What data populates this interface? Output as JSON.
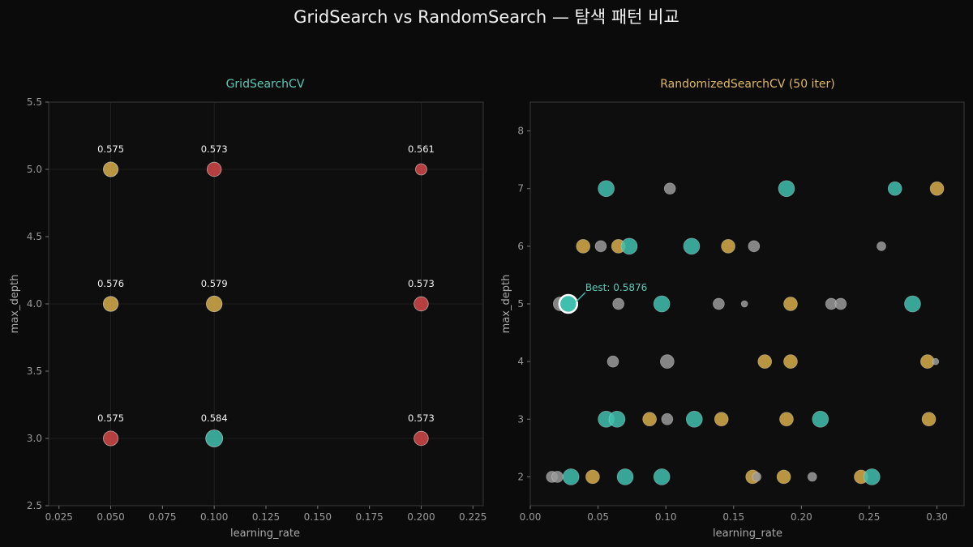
{
  "figure_title": "GridSearch vs RandomSearch — 탐색 패턴 비교",
  "colors": {
    "background": "#0b0b0b",
    "teal": "#3fbfae",
    "gold": "#d8ad4a",
    "red": "#d24848",
    "gray": "#9a9a9a",
    "grid_title": "#5fc9b8",
    "random_title": "#e0b865"
  },
  "chart_data": [
    {
      "type": "scatter",
      "title": "GridSearchCV",
      "xlabel": "learning_rate",
      "ylabel": "max_depth",
      "xlim": [
        0.02,
        0.23
      ],
      "ylim": [
        2.5,
        5.5
      ],
      "xticks": [
        "0.025",
        "0.050",
        "0.075",
        "0.100",
        "0.125",
        "0.150",
        "0.175",
        "0.200",
        "0.225"
      ],
      "yticks": [
        "2.5",
        "3.0",
        "3.5",
        "4.0",
        "4.5",
        "5.0",
        "5.5"
      ],
      "grid": true,
      "points": [
        {
          "x": 0.05,
          "y": 5,
          "score": 0.575,
          "label": "0.575",
          "color": "gold"
        },
        {
          "x": 0.1,
          "y": 5,
          "score": 0.573,
          "label": "0.573",
          "color": "red"
        },
        {
          "x": 0.2,
          "y": 5,
          "score": 0.561,
          "label": "0.561",
          "color": "red"
        },
        {
          "x": 0.05,
          "y": 4,
          "score": 0.576,
          "label": "0.576",
          "color": "gold"
        },
        {
          "x": 0.1,
          "y": 4,
          "score": 0.579,
          "label": "0.579",
          "color": "gold"
        },
        {
          "x": 0.2,
          "y": 4,
          "score": 0.573,
          "label": "0.573",
          "color": "red"
        },
        {
          "x": 0.05,
          "y": 3,
          "score": 0.575,
          "label": "0.575",
          "color": "red"
        },
        {
          "x": 0.1,
          "y": 3,
          "score": 0.584,
          "label": "0.584",
          "color": "teal"
        },
        {
          "x": 0.2,
          "y": 3,
          "score": 0.573,
          "label": "0.573",
          "color": "red"
        }
      ]
    },
    {
      "type": "scatter",
      "title": "RandomizedSearchCV (50 iter)",
      "xlabel": "learning_rate",
      "ylabel": "max_depth",
      "xlim": [
        0.0,
        0.32
      ],
      "ylim": [
        1.5,
        8.5
      ],
      "xticks": [
        "0.00",
        "0.05",
        "0.10",
        "0.15",
        "0.20",
        "0.25",
        "0.30"
      ],
      "yticks": [
        "2",
        "3",
        "4",
        "5",
        "6",
        "7",
        "8"
      ],
      "grid": false,
      "annotation": {
        "text": "Best: 0.5876",
        "x": 0.028,
        "y": 5
      },
      "points": [
        {
          "x": 0.056,
          "y": 7,
          "size": "large",
          "color": "teal"
        },
        {
          "x": 0.103,
          "y": 7,
          "size": "small",
          "color": "gray"
        },
        {
          "x": 0.189,
          "y": 7,
          "size": "large",
          "color": "teal"
        },
        {
          "x": 0.269,
          "y": 7,
          "size": "medium",
          "color": "teal"
        },
        {
          "x": 0.3,
          "y": 7,
          "size": "medium",
          "color": "gold"
        },
        {
          "x": 0.039,
          "y": 6,
          "size": "medium",
          "color": "gold"
        },
        {
          "x": 0.052,
          "y": 6,
          "size": "small",
          "color": "gray"
        },
        {
          "x": 0.065,
          "y": 6,
          "size": "medium",
          "color": "gold"
        },
        {
          "x": 0.073,
          "y": 6,
          "size": "large",
          "color": "teal"
        },
        {
          "x": 0.119,
          "y": 6,
          "size": "large",
          "color": "teal"
        },
        {
          "x": 0.146,
          "y": 6,
          "size": "medium",
          "color": "gold"
        },
        {
          "x": 0.165,
          "y": 6,
          "size": "small",
          "color": "gray"
        },
        {
          "x": 0.259,
          "y": 6,
          "size": "tiny",
          "color": "gray"
        },
        {
          "x": 0.022,
          "y": 5,
          "size": "medium",
          "color": "gray"
        },
        {
          "x": 0.028,
          "y": 5,
          "size": "best",
          "color": "teal"
        },
        {
          "x": 0.065,
          "y": 5,
          "size": "small",
          "color": "gray"
        },
        {
          "x": 0.097,
          "y": 5,
          "size": "large",
          "color": "teal"
        },
        {
          "x": 0.139,
          "y": 5,
          "size": "small",
          "color": "gray"
        },
        {
          "x": 0.158,
          "y": 5,
          "size": "xtiny",
          "color": "gray"
        },
        {
          "x": 0.192,
          "y": 5,
          "size": "medium",
          "color": "gold"
        },
        {
          "x": 0.222,
          "y": 5,
          "size": "small",
          "color": "gray"
        },
        {
          "x": 0.229,
          "y": 5,
          "size": "small",
          "color": "gray"
        },
        {
          "x": 0.282,
          "y": 5,
          "size": "large",
          "color": "teal"
        },
        {
          "x": 0.061,
          "y": 4,
          "size": "small",
          "color": "gray"
        },
        {
          "x": 0.101,
          "y": 4,
          "size": "medium",
          "color": "gray"
        },
        {
          "x": 0.173,
          "y": 4,
          "size": "medium",
          "color": "gold"
        },
        {
          "x": 0.192,
          "y": 4,
          "size": "medium",
          "color": "gold"
        },
        {
          "x": 0.293,
          "y": 4,
          "size": "medium",
          "color": "gold"
        },
        {
          "x": 0.299,
          "y": 4,
          "size": "xtiny",
          "color": "gray"
        },
        {
          "x": 0.056,
          "y": 3,
          "size": "large",
          "color": "teal"
        },
        {
          "x": 0.064,
          "y": 3,
          "size": "large",
          "color": "teal"
        },
        {
          "x": 0.088,
          "y": 3,
          "size": "medium",
          "color": "gold"
        },
        {
          "x": 0.101,
          "y": 3,
          "size": "small",
          "color": "gray"
        },
        {
          "x": 0.121,
          "y": 3,
          "size": "large",
          "color": "teal"
        },
        {
          "x": 0.141,
          "y": 3,
          "size": "medium",
          "color": "gold"
        },
        {
          "x": 0.189,
          "y": 3,
          "size": "medium",
          "color": "gold"
        },
        {
          "x": 0.214,
          "y": 3,
          "size": "large",
          "color": "teal"
        },
        {
          "x": 0.294,
          "y": 3,
          "size": "medium",
          "color": "gold"
        },
        {
          "x": 0.016,
          "y": 2,
          "size": "small",
          "color": "gray"
        },
        {
          "x": 0.02,
          "y": 2,
          "size": "small",
          "color": "gray"
        },
        {
          "x": 0.03,
          "y": 2,
          "size": "large",
          "color": "teal"
        },
        {
          "x": 0.046,
          "y": 2,
          "size": "medium",
          "color": "gold"
        },
        {
          "x": 0.07,
          "y": 2,
          "size": "large",
          "color": "teal"
        },
        {
          "x": 0.097,
          "y": 2,
          "size": "large",
          "color": "teal"
        },
        {
          "x": 0.164,
          "y": 2,
          "size": "medium",
          "color": "gold"
        },
        {
          "x": 0.167,
          "y": 2,
          "size": "tiny",
          "color": "gray"
        },
        {
          "x": 0.187,
          "y": 2,
          "size": "medium",
          "color": "gold"
        },
        {
          "x": 0.208,
          "y": 2,
          "size": "tiny",
          "color": "gray"
        },
        {
          "x": 0.244,
          "y": 2,
          "size": "medium",
          "color": "gold"
        },
        {
          "x": 0.252,
          "y": 2,
          "size": "large",
          "color": "teal"
        }
      ]
    }
  ]
}
